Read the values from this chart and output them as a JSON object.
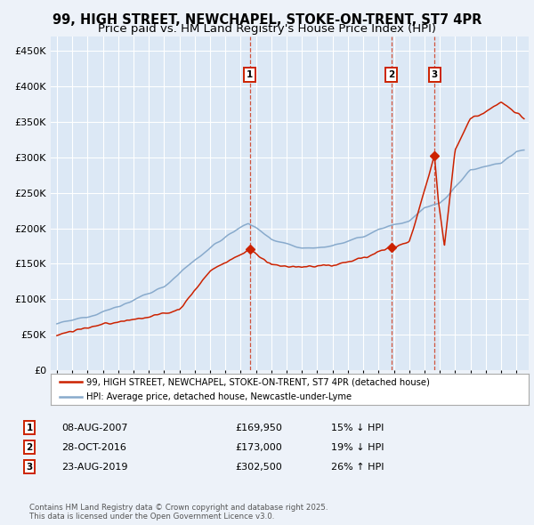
{
  "title": "99, HIGH STREET, NEWCHAPEL, STOKE-ON-TRENT, ST7 4PR",
  "subtitle": "Price paid vs. HM Land Registry's House Price Index (HPI)",
  "legend_line1": "99, HIGH STREET, NEWCHAPEL, STOKE-ON-TRENT, ST7 4PR (detached house)",
  "legend_line2": "HPI: Average price, detached house, Newcastle-under-Lyme",
  "transactions": [
    {
      "num": 1,
      "date": "08-AUG-2007",
      "price": 169950,
      "hpi_diff": "15% ↓ HPI",
      "year": 2007.6
    },
    {
      "num": 2,
      "date": "28-OCT-2016",
      "price": 173000,
      "hpi_diff": "19% ↓ HPI",
      "year": 2016.83
    },
    {
      "num": 3,
      "date": "23-AUG-2019",
      "price": 302500,
      "hpi_diff": "26% ↑ HPI",
      "year": 2019.65
    }
  ],
  "footer": "Contains HM Land Registry data © Crown copyright and database right 2025.\nThis data is licensed under the Open Government Licence v3.0.",
  "background_color": "#edf2f9",
  "plot_bg_color": "#dce8f5",
  "red_color": "#cc2200",
  "blue_color": "#88aacc",
  "grid_color": "#ffffff",
  "ylim": [
    0,
    470000
  ],
  "yticks": [
    0,
    50000,
    100000,
    150000,
    200000,
    250000,
    300000,
    350000,
    400000,
    450000
  ],
  "xlim_start": 1994.6,
  "xlim_end": 2025.8,
  "title_fontsize": 10.5,
  "subtitle_fontsize": 9.5
}
